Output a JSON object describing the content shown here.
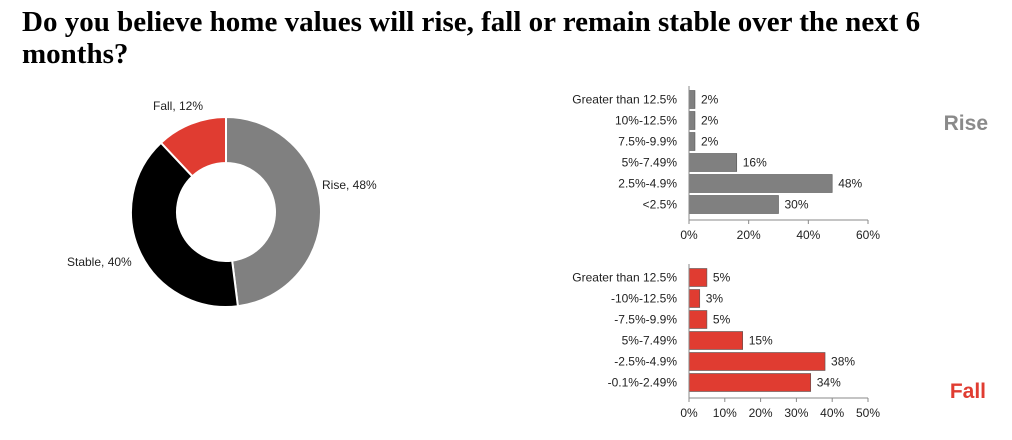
{
  "title": "Do you believe home values will rise, fall or remain stable over the next 6 months?",
  "chart_data": [
    {
      "type": "pie",
      "style": "donut",
      "slices": [
        {
          "label": "Rise, 48%",
          "value": 48,
          "color": "#808080"
        },
        {
          "label": "Stable, 40%",
          "value": 40,
          "color": "#000000"
        },
        {
          "label": "Fall, 12%",
          "value": 12,
          "color": "#e03c31"
        }
      ]
    },
    {
      "type": "bar",
      "orientation": "horizontal",
      "side_label": "Rise",
      "side_label_color": "#8a8a8a",
      "bar_color": "#808080",
      "categories": [
        "Greater than 12.5%",
        "10%-12.5%",
        "7.5%-9.9%",
        "5%-7.49%",
        "2.5%-4.9%",
        "<2.5%"
      ],
      "values": [
        2,
        2,
        2,
        16,
        48,
        30
      ],
      "value_labels": [
        "2%",
        "2%",
        "2%",
        "16%",
        "48%",
        "30%"
      ],
      "xlim": [
        0,
        60
      ],
      "xticks": [
        "0%",
        "20%",
        "40%",
        "60%"
      ]
    },
    {
      "type": "bar",
      "orientation": "horizontal",
      "side_label": "Fall",
      "side_label_color": "#e03c31",
      "bar_color": "#e03c31",
      "categories": [
        "Greater than 12.5%",
        "-10%-12.5%",
        "-7.5%-9.9%",
        "5%-7.49%",
        "-2.5%-4.9%",
        "-0.1%-2.49%"
      ],
      "values": [
        5,
        3,
        5,
        15,
        38,
        34
      ],
      "value_labels": [
        "5%",
        "3%",
        "5%",
        "15%",
        "38%",
        "34%"
      ],
      "xlim": [
        0,
        50
      ],
      "xticks": [
        "0%",
        "10%",
        "20%",
        "30%",
        "40%",
        "50%"
      ]
    }
  ]
}
